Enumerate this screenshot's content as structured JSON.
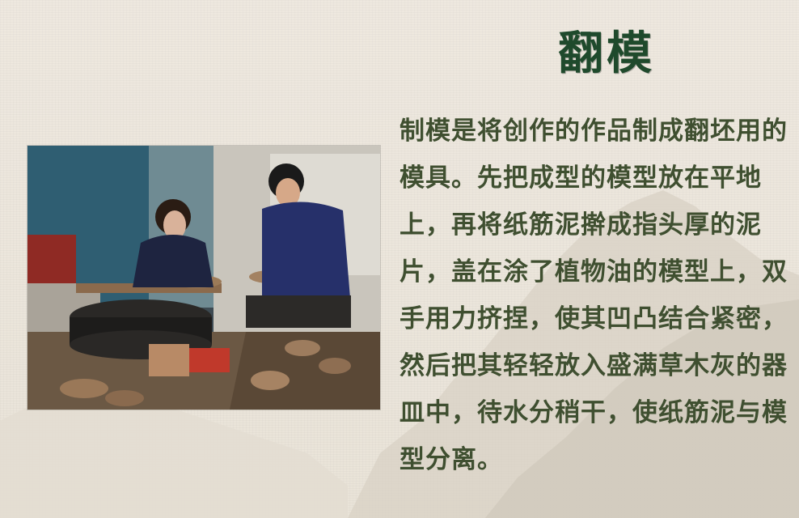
{
  "title": "翻模",
  "body_text": "制模是将创作的作品制成翻坯用的模具。先把成型的模型放在平地上，再将纸筋泥擀成指头厚的泥片，盖在涂了植物油的模型上，双手用力挤捏，使其凹凸结合紧密，然后把其轻轻放入盛满草木灰的器皿中，待水分稍干，使纸筋泥与模型分离。",
  "photo": {
    "subject": "pottery-workshop-photo"
  },
  "colors": {
    "title": "#1f4a2c",
    "text": "#3f4f30",
    "background": "#ece6dc"
  }
}
